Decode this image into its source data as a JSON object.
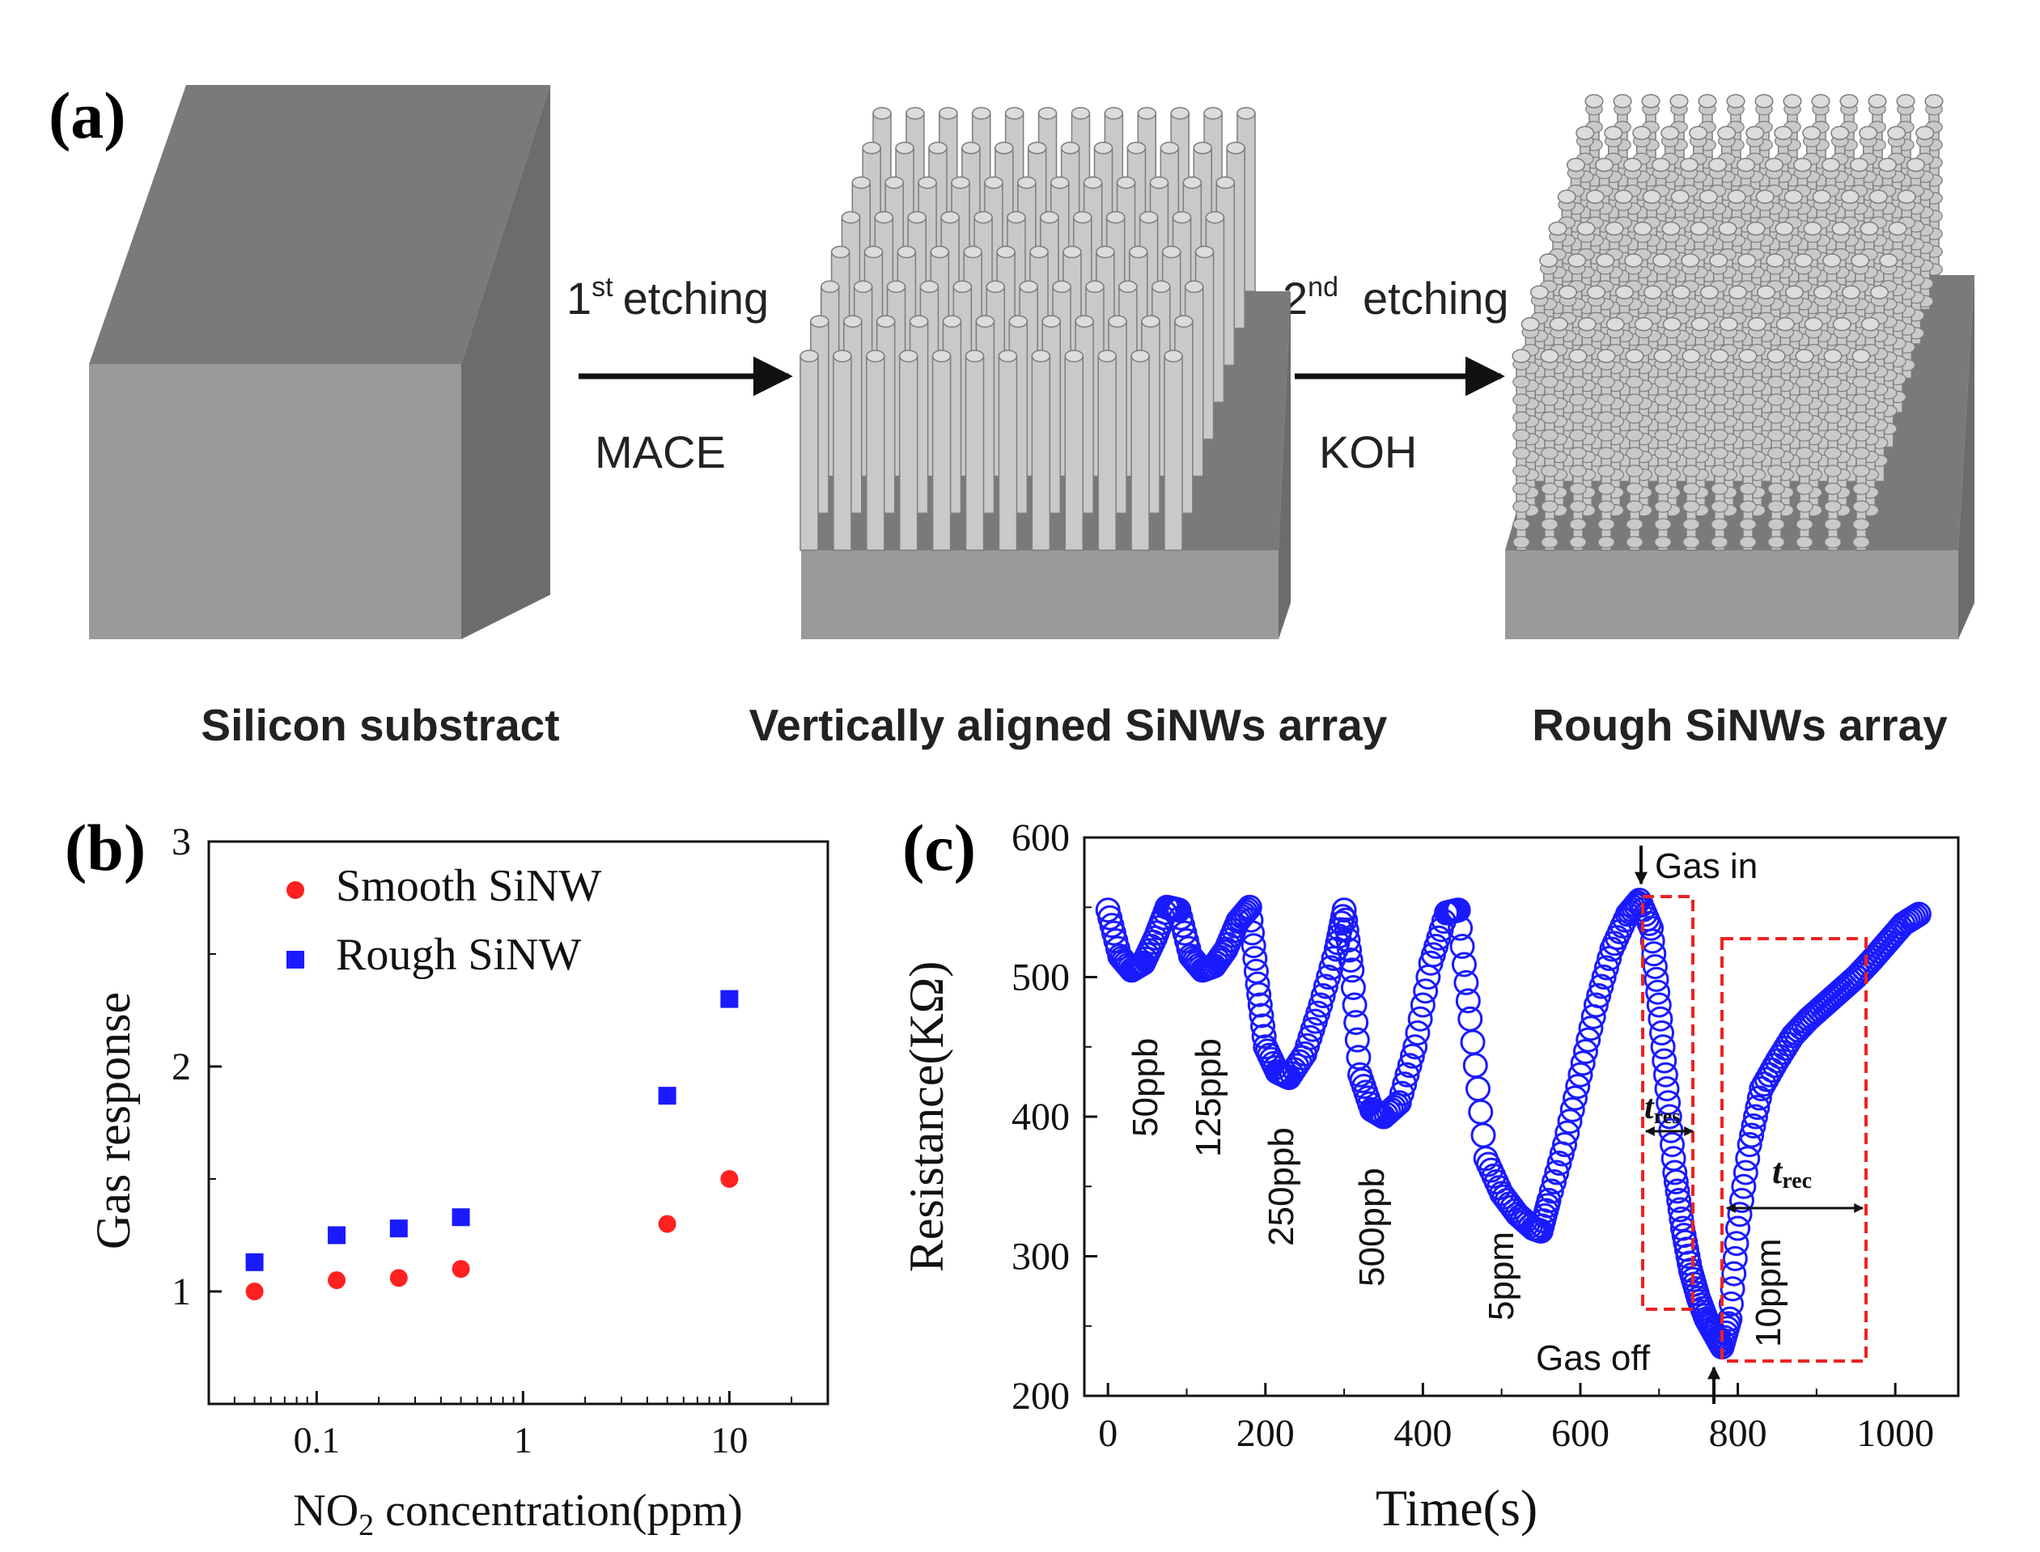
{
  "panel_a": {
    "label": "(a)",
    "step1": {
      "ordinal": "1",
      "sup": "st",
      "word": "etching",
      "method": "MACE"
    },
    "step2": {
      "ordinal": "2",
      "sup": "nd",
      "word": "etching",
      "method": "KOH"
    },
    "captions": [
      "Silicon substract",
      "Vertically aligned SiNWs array",
      "Rough SiNWs array"
    ],
    "colors": {
      "box_top": "#7a7a7a",
      "box_front": "#9a9a9a",
      "box_side": "#6c6c6c",
      "wire": "#c8c8c8"
    }
  },
  "chart_data": [
    {
      "type": "scatter",
      "panel_label": "(b)",
      "xlabel_prefix": "NO",
      "xlabel_sub": "2",
      "xlabel_suffix": " concentration(ppm)",
      "ylabel": "Gas response",
      "xscale": "log",
      "xlim": [
        0.03,
        30
      ],
      "ylim": [
        0.5,
        3
      ],
      "x_ticks": [
        {
          "value": 0.1,
          "label": "0.1"
        },
        {
          "value": 1,
          "label": "1"
        },
        {
          "value": 10,
          "label": "10"
        }
      ],
      "y_ticks": [
        {
          "value": 1,
          "label": "1"
        },
        {
          "value": 2,
          "label": "2"
        },
        {
          "value": 3,
          "label": "3"
        }
      ],
      "legend_position": "top-left",
      "series": [
        {
          "name": "Smooth SiNW",
          "marker": "circle",
          "color": "#ff2020",
          "x": [
            0.05,
            0.125,
            0.25,
            0.5,
            5,
            10
          ],
          "y": [
            1.0,
            1.05,
            1.06,
            1.1,
            1.3,
            1.5
          ]
        },
        {
          "name": "Rough SiNW",
          "marker": "square",
          "color": "#1a1aff",
          "x": [
            0.05,
            0.125,
            0.25,
            0.5,
            5,
            10
          ],
          "y": [
            1.13,
            1.25,
            1.28,
            1.33,
            1.87,
            2.3
          ]
        }
      ]
    },
    {
      "type": "line",
      "panel_label": "(c)",
      "xlabel": "Time(s)",
      "ylabel": "Resistance(KΩ)",
      "xlim": [
        -30,
        1080
      ],
      "ylim": [
        200,
        600
      ],
      "x_ticks": [
        0,
        200,
        400,
        600,
        800,
        1000
      ],
      "y_ticks": [
        200,
        300,
        400,
        500,
        600
      ],
      "marker": "open-circle",
      "color": "#1a1aff",
      "series": [
        {
          "name": "Resistance",
          "x": [
            0,
            15,
            30,
            45,
            60,
            75,
            90,
            105,
            120,
            135,
            150,
            165,
            180,
            190,
            200,
            215,
            230,
            250,
            270,
            290,
            300,
            310,
            320,
            335,
            350,
            370,
            390,
            410,
            430,
            445,
            460,
            480,
            500,
            520,
            540,
            550,
            560,
            580,
            600,
            620,
            640,
            660,
            675,
            690,
            700,
            710,
            720,
            730,
            740,
            750,
            760,
            770,
            780,
            790,
            800,
            815,
            830,
            850,
            870,
            890,
            910,
            930,
            950,
            970,
            990,
            1010,
            1030
          ],
          "y": [
            548,
            515,
            505,
            510,
            528,
            550,
            548,
            515,
            505,
            508,
            520,
            540,
            550,
            495,
            450,
            432,
            428,
            445,
            480,
            520,
            548,
            505,
            430,
            405,
            400,
            410,
            450,
            510,
            546,
            548,
            470,
            370,
            345,
            330,
            320,
            318,
            340,
            380,
            430,
            480,
            520,
            545,
            555,
            535,
            480,
            420,
            360,
            320,
            290,
            270,
            255,
            245,
            235,
            255,
            320,
            380,
            420,
            440,
            458,
            470,
            480,
            490,
            500,
            512,
            525,
            538,
            545
          ]
        }
      ],
      "annotations": {
        "gas_in": "Gas in",
        "gas_off": "Gas off",
        "t_res_main": "t",
        "t_res_sub": "res",
        "t_rec_main": "t",
        "t_rec_sub": "rec",
        "concentrations": [
          "50ppb",
          "125ppb",
          "250ppb",
          "500ppb",
          "5ppm",
          "10ppm"
        ]
      }
    }
  ]
}
